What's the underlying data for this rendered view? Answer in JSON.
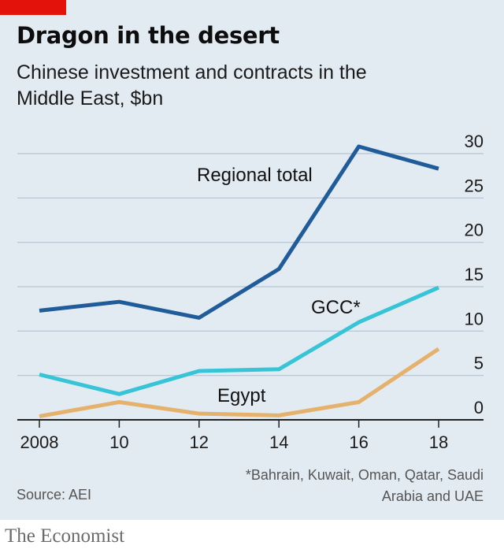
{
  "header": {
    "title": "Dragon in the desert",
    "subtitle": "Chinese investment and contracts in the Middle East, $bn"
  },
  "footer": {
    "source": "Source: AEI",
    "footnote": "*Bahrain, Kuwait, Oman, Qatar, Saudi Arabia and UAE",
    "brand": "The Economist"
  },
  "colors": {
    "accent_red": "#e3120b",
    "regional_total": "#1f5c99",
    "gcc": "#36c4d6",
    "egypt": "#e5b26d",
    "gridline": "#b5c2cf",
    "axis": "#222222"
  },
  "chart_data": {
    "type": "line",
    "title": "Dragon in the desert",
    "subtitle": "Chinese investment and contracts in the Middle East, $bn",
    "x": [
      2008,
      2010,
      2012,
      2014,
      2016,
      2018
    ],
    "x_tick_labels": [
      "2008",
      "10",
      "12",
      "14",
      "16",
      "18"
    ],
    "xlim": [
      2008,
      2018
    ],
    "ylim": [
      0,
      30
    ],
    "y_ticks": [
      0,
      5,
      10,
      15,
      20,
      25,
      30
    ],
    "y_axis_position": "right",
    "grid": true,
    "series": [
      {
        "name": "Regional total",
        "color_key": "regional_total",
        "values": [
          12.3,
          13.3,
          11.5,
          17.0,
          30.8,
          28.3
        ]
      },
      {
        "name": "GCC*",
        "color_key": "gcc",
        "values": [
          5.1,
          2.9,
          5.5,
          5.7,
          11.0,
          14.9
        ]
      },
      {
        "name": "Egypt",
        "color_key": "egypt",
        "values": [
          0.4,
          2.0,
          0.7,
          0.5,
          2.0,
          8.0
        ]
      }
    ]
  }
}
